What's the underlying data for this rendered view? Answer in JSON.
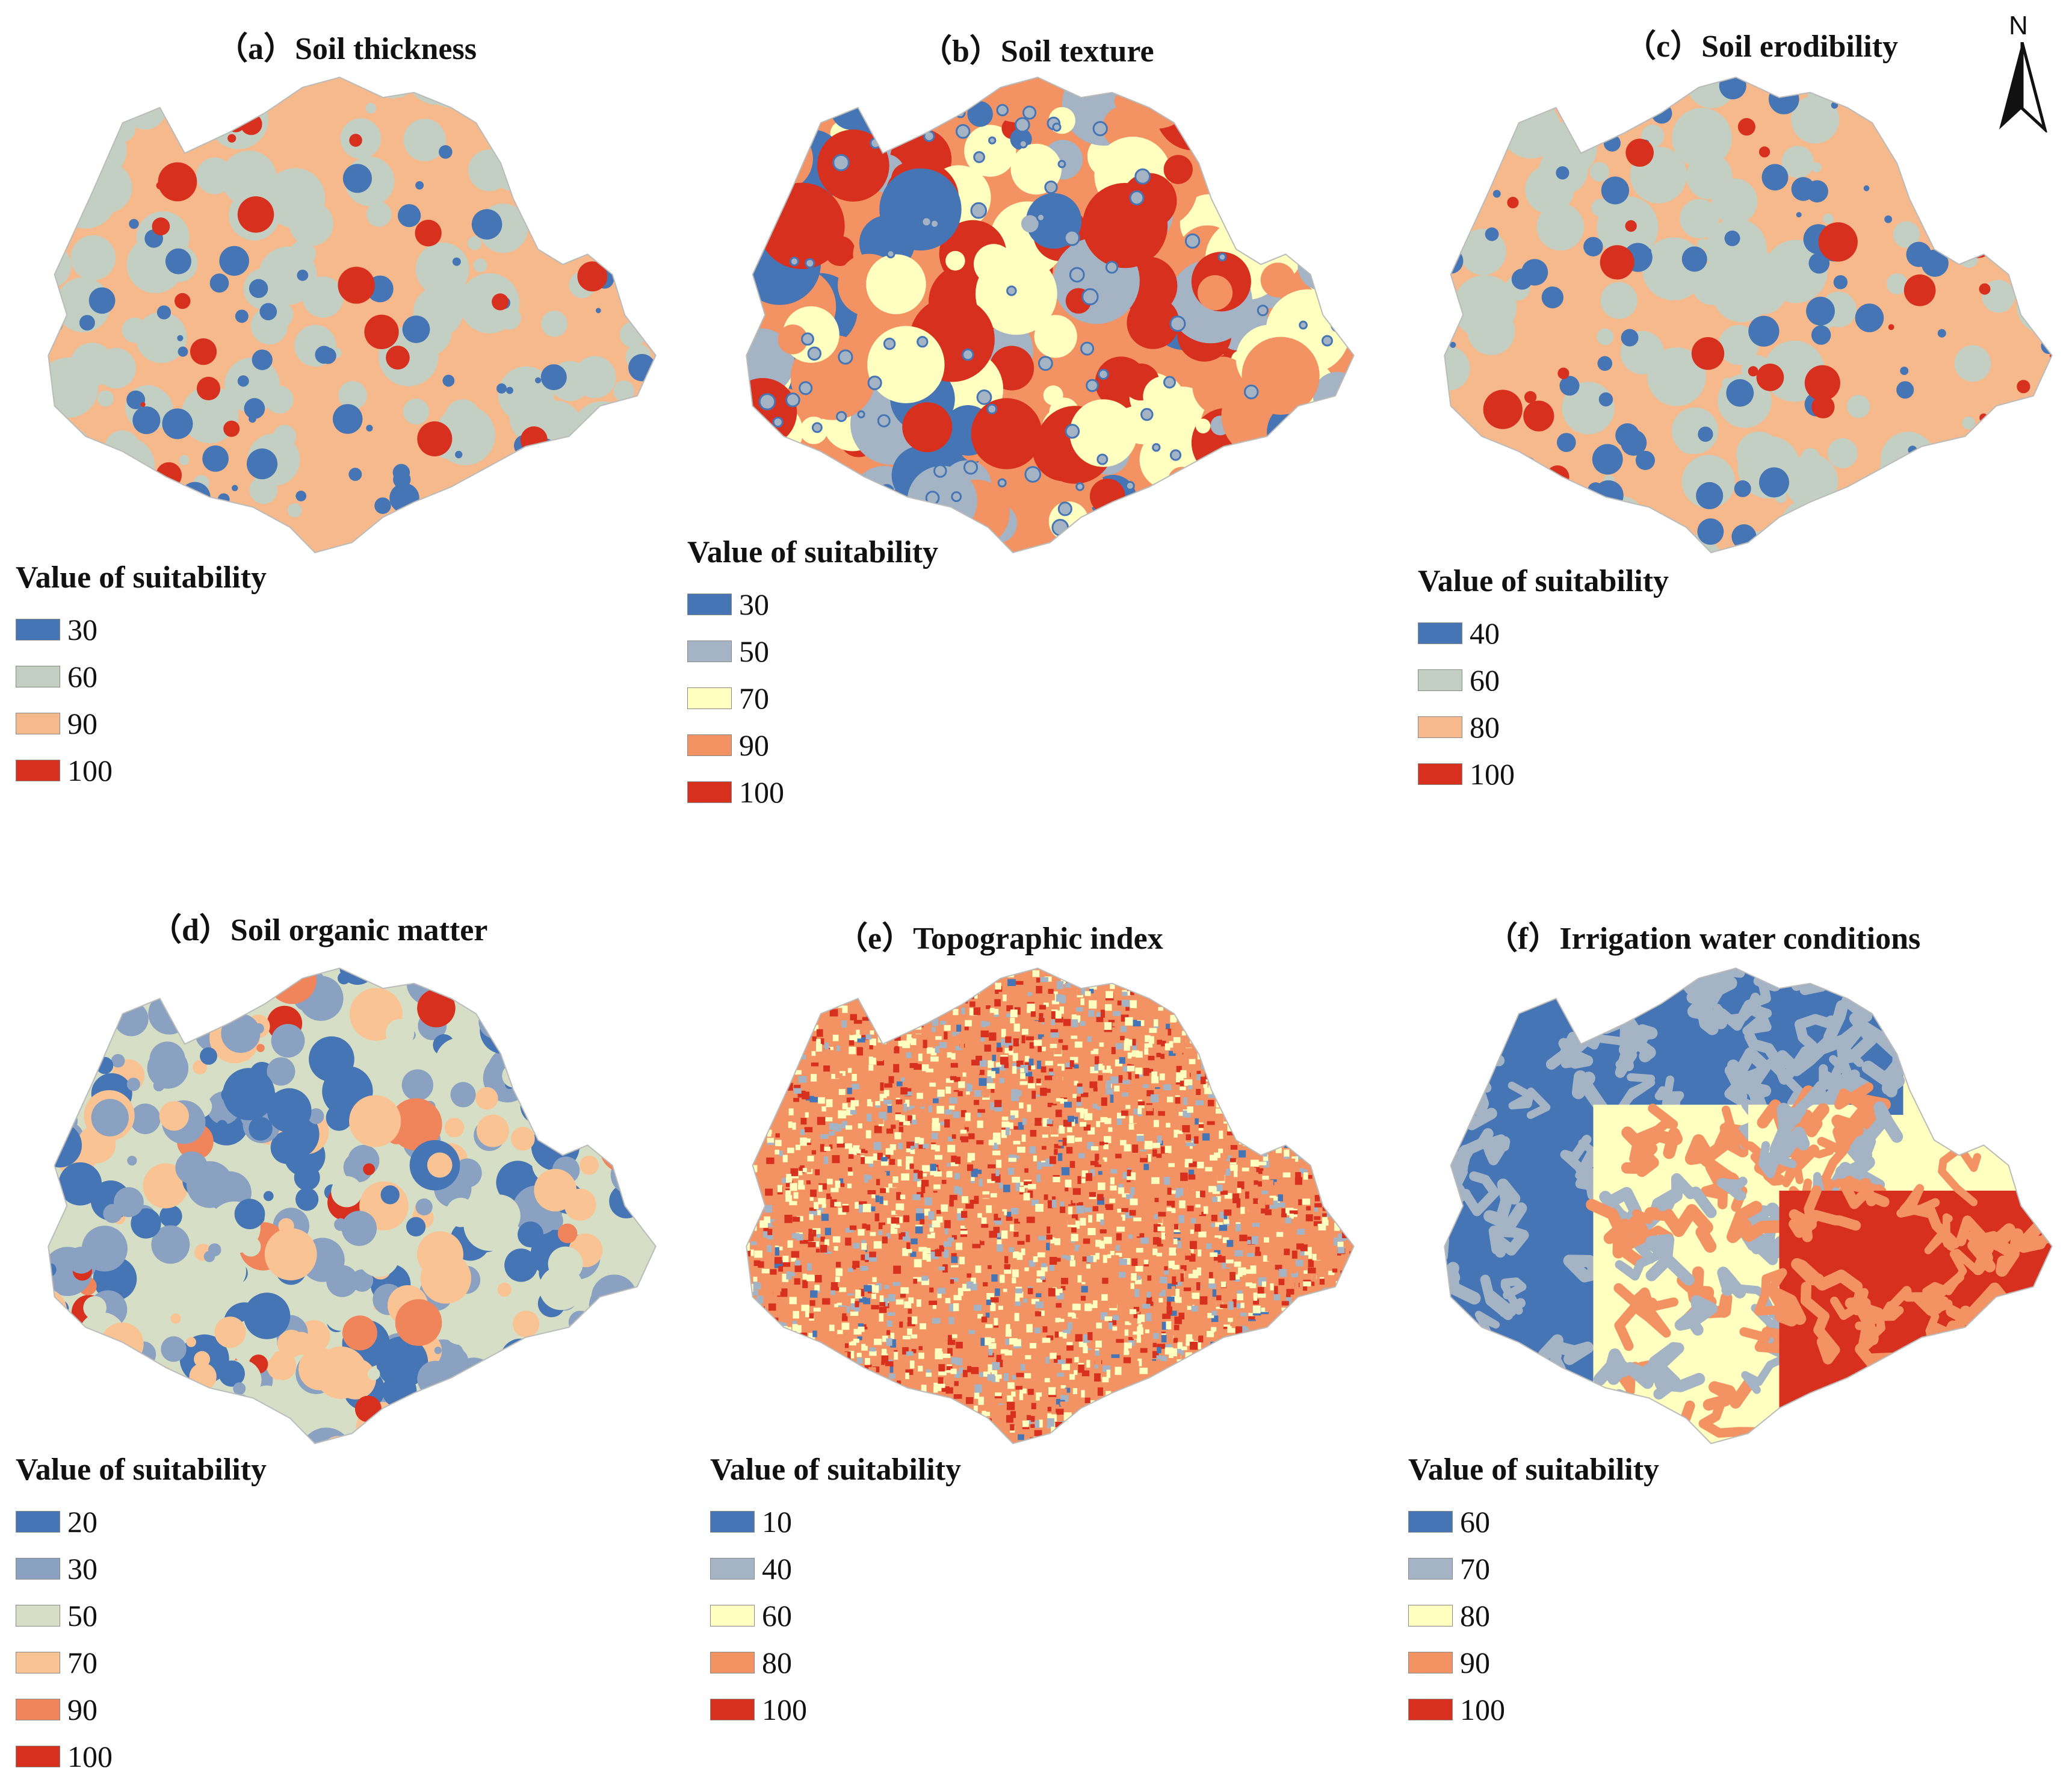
{
  "north_arrow": {
    "label": "N"
  },
  "panels": [
    {
      "title": "（a）Soil thickness",
      "legend": {
        "title": "Value of suitability",
        "items": [
          {
            "label": "30",
            "color": "#4575b4"
          },
          {
            "label": "60",
            "color": "#c3cfc2"
          },
          {
            "label": "90",
            "color": "#f6b98c"
          },
          {
            "label": "100",
            "color": "#d7301f"
          }
        ]
      }
    },
    {
      "title": "（b）Soil texture",
      "legend": {
        "title": "Value of suitability",
        "items": [
          {
            "label": "30",
            "color": "#4575b4"
          },
          {
            "label": "50",
            "color": "#a4b4c4"
          },
          {
            "label": "70",
            "color": "#ffffc0"
          },
          {
            "label": "90",
            "color": "#f39262"
          },
          {
            "label": "100",
            "color": "#d7301f"
          }
        ]
      }
    },
    {
      "title": "（c）Soil erodibility",
      "legend": {
        "title": "Value of suitability",
        "items": [
          {
            "label": "40",
            "color": "#4575b4"
          },
          {
            "label": "60",
            "color": "#c3cfc2"
          },
          {
            "label": "80",
            "color": "#f6b98c"
          },
          {
            "label": "100",
            "color": "#d7301f"
          }
        ]
      }
    },
    {
      "title": "（d）Soil organic matter",
      "legend": {
        "title": "Value of suitability",
        "items": [
          {
            "label": "20",
            "color": "#4575b4"
          },
          {
            "label": "30",
            "color": "#8aa1c2"
          },
          {
            "label": "50",
            "color": "#d6dfc5"
          },
          {
            "label": "70",
            "color": "#fac393"
          },
          {
            "label": "90",
            "color": "#f0845b"
          },
          {
            "label": "100",
            "color": "#d7301f"
          }
        ]
      }
    },
    {
      "title": "（e）Topographic index",
      "legend": {
        "title": "Value of suitability",
        "items": [
          {
            "label": "10",
            "color": "#4575b4"
          },
          {
            "label": "40",
            "color": "#a4b4c4"
          },
          {
            "label": "60",
            "color": "#ffffc0"
          },
          {
            "label": "80",
            "color": "#f39262"
          },
          {
            "label": "100",
            "color": "#d7301f"
          }
        ]
      }
    },
    {
      "title": "（f）Irrigation water conditions",
      "legend": {
        "title": "Value of suitability",
        "items": [
          {
            "label": "60",
            "color": "#4575b4"
          },
          {
            "label": "70",
            "color": "#a4b4c4"
          },
          {
            "label": "80",
            "color": "#ffffc0"
          },
          {
            "label": "90",
            "color": "#f39262"
          },
          {
            "label": "100",
            "color": "#d7301f"
          }
        ]
      }
    }
  ]
}
